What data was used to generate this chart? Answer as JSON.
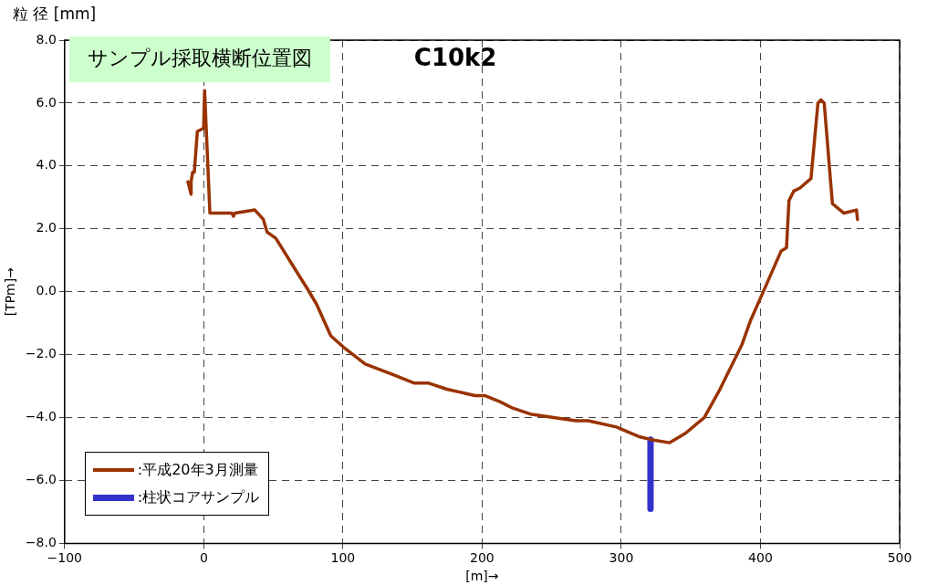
{
  "chart_data": {
    "type": "line",
    "title": "サンプル採取横断位置図",
    "subtitle": "C10k2",
    "xlabel": "[m]→",
    "ylabel": "[TPm]→",
    "annotations": [
      "粒 径 [mm]"
    ],
    "xlim": [
      -100,
      500
    ],
    "xticks": [
      {
        "value": -100,
        "label": "−100"
      },
      0,
      100,
      200,
      300,
      400,
      500
    ],
    "ylim": [
      -8,
      8
    ],
    "yticks": [
      {
        "value": -8,
        "label": "−8.0"
      },
      {
        "value": -6,
        "label": "−6.0"
      },
      {
        "value": -4,
        "label": "−4.0"
      },
      {
        "value": -2,
        "label": "−2.0"
      },
      {
        "value": 0,
        "label": "0.0"
      },
      {
        "value": 2,
        "label": "2.0"
      },
      {
        "value": 4,
        "label": "4.0"
      },
      {
        "value": 6,
        "label": "6.0"
      },
      {
        "value": 8,
        "label": "8.0"
      }
    ],
    "grid": true,
    "legend": "bottom left",
    "series": [
      {
        "name": ":平成20年3月測量",
        "color": "#993300",
        "x": [
          -11.4,
          -9.1,
          -9.1,
          -8.0,
          -6.8,
          -4.6,
          -0.1,
          0.6,
          4.4,
          13.5,
          20.2,
          21.3,
          22.4,
          36.7,
          42.8,
          45.5,
          51.8,
          68.7,
          74.4,
          81.1,
          91.3,
          101.4,
          116,
          134.1,
          151,
          161.2,
          174.7,
          195,
          201.8,
          213.1,
          222,
          235.6,
          251.4,
          267.2,
          276.2,
          296.5,
          312.3,
          321.3,
          334.8,
          346.1,
          359.6,
          370.9,
          386.5,
          393,
          400,
          414.9,
          418.7,
          420.5,
          423.9,
          428.4,
          436.3,
          441.3,
          443.5,
          445.8,
          451.7,
          460,
          469,
          469.7
        ],
        "values": [
          3.5,
          3.1,
          3.5,
          3.8,
          3.8,
          5.1,
          5.2,
          6.4,
          2.5,
          2.5,
          2.5,
          2.4,
          2.5,
          2.6,
          2.3,
          1.9,
          1.7,
          0.5,
          0.1,
          -0.4,
          -1.4,
          -1.8,
          -2.3,
          -2.6,
          -2.9,
          -2.9,
          -3.1,
          -3.3,
          -3.3,
          -3.5,
          -3.7,
          -3.9,
          -4.0,
          -4.1,
          -4.1,
          -4.3,
          -4.6,
          -4.7,
          -4.8,
          -4.5,
          -4.0,
          -3.1,
          -1.7,
          -0.9,
          -0.2,
          1.3,
          1.4,
          2.9,
          3.2,
          3.3,
          3.6,
          6.0,
          6.1,
          6.0,
          2.8,
          2.5,
          2.6,
          2.3
        ]
      },
      {
        "name": ":柱状コアサンプル",
        "color": "#3333cc",
        "x": [
          321,
          321
        ],
        "values": [
          -4.7,
          -6.9
        ]
      }
    ]
  }
}
